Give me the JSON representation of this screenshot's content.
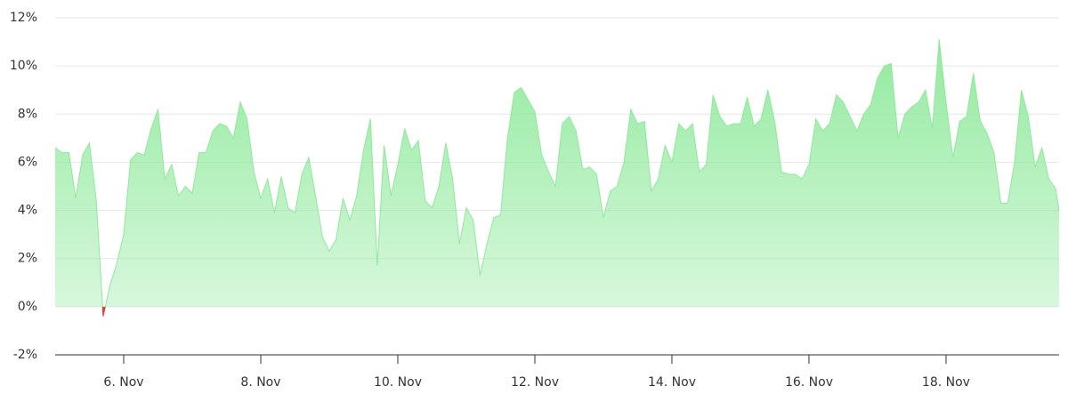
{
  "chart_data": {
    "type": "area",
    "x": [
      5.0,
      5.1,
      5.2,
      5.3,
      5.4,
      5.5,
      5.6,
      5.7,
      5.8,
      5.9,
      6.0,
      6.1,
      6.2,
      6.3,
      6.4,
      6.5,
      6.6,
      6.7,
      6.8,
      6.9,
      7.0,
      7.1,
      7.2,
      7.3,
      7.4,
      7.5,
      7.6,
      7.7,
      7.8,
      7.9,
      8.0,
      8.1,
      8.2,
      8.3,
      8.4,
      8.5,
      8.6,
      8.7,
      8.8,
      8.9,
      9.0,
      9.1,
      9.2,
      9.3,
      9.4,
      9.5,
      9.6,
      9.7,
      9.8,
      9.9,
      10.0,
      10.1,
      10.2,
      10.3,
      10.4,
      10.5,
      10.6,
      10.7,
      10.8,
      10.9,
      11.0,
      11.1,
      11.2,
      11.3,
      11.4,
      11.5,
      11.6,
      11.7,
      11.8,
      11.9,
      12.0,
      12.1,
      12.2,
      12.3,
      12.4,
      12.5,
      12.6,
      12.7,
      12.8,
      12.9,
      13.0,
      13.1,
      13.2,
      13.3,
      13.4,
      13.5,
      13.6,
      13.7,
      13.8,
      13.9,
      14.0,
      14.1,
      14.2,
      14.3,
      14.4,
      14.5,
      14.6,
      14.7,
      14.8,
      14.9,
      15.0,
      15.1,
      15.2,
      15.3,
      15.4,
      15.5,
      15.6,
      15.7,
      15.8,
      15.9,
      16.0,
      16.1,
      16.2,
      16.3,
      16.4,
      16.5,
      16.6,
      16.7,
      16.8,
      16.9,
      17.0,
      17.1,
      17.2,
      17.3,
      17.4,
      17.5,
      17.6,
      17.7,
      17.8,
      17.9,
      18.0,
      18.1,
      18.2,
      18.3,
      18.4,
      18.5,
      18.6,
      18.7,
      18.8,
      18.9,
      19.0,
      19.1,
      19.2,
      19.3,
      19.4,
      19.5,
      19.6,
      19.65
    ],
    "values": [
      6.6,
      6.4,
      6.4,
      4.5,
      6.3,
      6.8,
      4.4,
      -0.4,
      0.9,
      1.8,
      3.0,
      6.1,
      6.4,
      6.3,
      7.4,
      8.2,
      5.3,
      5.9,
      4.6,
      5.0,
      4.7,
      6.4,
      6.4,
      7.3,
      7.6,
      7.5,
      7.0,
      8.5,
      7.8,
      5.6,
      4.5,
      5.3,
      3.9,
      5.4,
      4.1,
      3.9,
      5.5,
      6.2,
      4.6,
      2.9,
      2.3,
      2.8,
      4.5,
      3.6,
      4.6,
      6.5,
      7.8,
      1.7,
      6.7,
      4.6,
      5.9,
      7.4,
      6.5,
      6.9,
      4.4,
      4.1,
      5.0,
      6.8,
      5.3,
      2.6,
      4.1,
      3.6,
      1.3,
      2.6,
      3.7,
      3.8,
      7.0,
      8.9,
      9.1,
      8.6,
      8.1,
      6.3,
      5.6,
      5.0,
      7.6,
      7.9,
      7.3,
      5.7,
      5.8,
      5.5,
      3.7,
      4.8,
      5.0,
      6.0,
      8.2,
      7.6,
      7.7,
      4.8,
      5.3,
      6.7,
      6.0,
      7.6,
      7.3,
      7.6,
      5.6,
      5.9,
      8.8,
      7.9,
      7.5,
      7.6,
      7.6,
      8.7,
      7.5,
      7.8,
      9.0,
      7.7,
      5.6,
      5.5,
      5.5,
      5.3,
      5.9,
      7.8,
      7.3,
      7.6,
      8.8,
      8.5,
      7.9,
      7.3,
      8.0,
      8.4,
      9.5,
      10.0,
      10.1,
      7.0,
      8.0,
      8.3,
      8.5,
      9.0,
      7.4,
      11.1,
      8.5,
      6.2,
      7.7,
      7.9,
      9.7,
      7.7,
      7.2,
      6.4,
      4.3,
      4.3,
      6.0,
      9.0,
      7.9,
      5.8,
      6.6,
      5.3,
      4.9,
      4.0
    ],
    "color": "#8ee99b",
    "negative_color": "#e53935",
    "xlim": [
      5,
      19.65
    ],
    "xticks": [
      {
        "value": 6,
        "label": "6. Nov"
      },
      {
        "value": 8,
        "label": "8. Nov"
      },
      {
        "value": 10,
        "label": "10. Nov"
      },
      {
        "value": 12,
        "label": "12. Nov"
      },
      {
        "value": 14,
        "label": "14. Nov"
      },
      {
        "value": 16,
        "label": "16. Nov"
      },
      {
        "value": 18,
        "label": "18. Nov"
      }
    ],
    "ylim": [
      -2,
      12
    ],
    "yticks": [
      {
        "value": -2,
        "label": "-2%"
      },
      {
        "value": 0,
        "label": "0%"
      },
      {
        "value": 2,
        "label": "2%"
      },
      {
        "value": 4,
        "label": "4%"
      },
      {
        "value": 6,
        "label": "6%"
      },
      {
        "value": 8,
        "label": "8%"
      },
      {
        "value": 10,
        "label": "10%"
      },
      {
        "value": 12,
        "label": "12%"
      }
    ],
    "grid": true
  }
}
